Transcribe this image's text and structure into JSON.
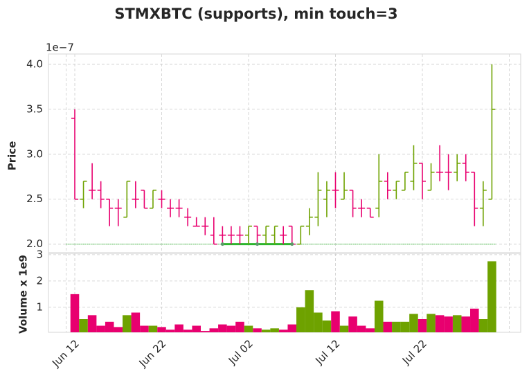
{
  "chart_data": {
    "type": "ohlc",
    "title": "STMXBTC (supports), min touch=3",
    "ylabel": "Price",
    "y_offset_label": "1e−7",
    "volume_label": "Volume x 1e9",
    "categories": [
      "Jun 12",
      null,
      null,
      null,
      null,
      null,
      null,
      null,
      null,
      null,
      "Jun 22",
      null,
      null,
      null,
      null,
      null,
      null,
      null,
      null,
      null,
      "Jul 02",
      null,
      null,
      null,
      null,
      null,
      null,
      null,
      null,
      null,
      "Jul 12",
      null,
      null,
      null,
      null,
      null,
      null,
      null,
      null,
      null,
      "Jul 22",
      null,
      null,
      null,
      null,
      null,
      null,
      null,
      null
    ],
    "open": [
      3.4,
      2.5,
      2.6,
      2.6,
      2.5,
      2.4,
      2.3,
      2.5,
      2.6,
      2.4,
      2.5,
      2.4,
      2.4,
      2.3,
      2.2,
      2.2,
      2.1,
      2.1,
      2.1,
      2.1,
      2.1,
      2.2,
      2.1,
      2.1,
      2.1,
      2.2,
      2.0,
      2.2,
      2.3,
      2.5,
      2.6,
      2.5,
      2.6,
      2.4,
      2.4,
      2.4,
      2.7,
      2.6,
      2.6,
      2.7,
      2.9,
      2.6,
      2.8,
      2.8,
      2.8,
      2.9,
      2.8,
      2.4,
      2.5
    ],
    "high": [
      3.5,
      2.7,
      2.9,
      2.7,
      2.5,
      2.5,
      2.7,
      2.7,
      2.6,
      2.6,
      2.6,
      2.5,
      2.5,
      2.4,
      2.3,
      2.3,
      2.3,
      2.2,
      2.2,
      2.2,
      2.2,
      2.2,
      2.2,
      2.2,
      2.2,
      2.2,
      2.2,
      2.4,
      2.8,
      2.7,
      2.8,
      2.8,
      2.6,
      2.5,
      2.4,
      3.0,
      2.8,
      2.7,
      2.8,
      3.1,
      2.9,
      2.9,
      3.1,
      3.0,
      3.0,
      3.0,
      2.8,
      2.7,
      4.0
    ],
    "low": [
      2.5,
      2.4,
      2.5,
      2.4,
      2.2,
      2.2,
      2.3,
      2.4,
      2.4,
      2.4,
      2.4,
      2.3,
      2.3,
      2.2,
      2.2,
      2.1,
      2.0,
      2.0,
      2.0,
      2.0,
      2.0,
      2.0,
      2.0,
      2.0,
      2.0,
      2.0,
      2.0,
      2.1,
      2.2,
      2.3,
      2.4,
      2.5,
      2.3,
      2.3,
      2.3,
      2.3,
      2.5,
      2.5,
      2.6,
      2.6,
      2.5,
      2.6,
      2.7,
      2.6,
      2.7,
      2.7,
      2.2,
      2.2,
      2.5
    ],
    "close": [
      2.5,
      2.7,
      2.6,
      2.5,
      2.4,
      2.4,
      2.7,
      2.5,
      2.4,
      2.6,
      2.5,
      2.4,
      2.4,
      2.3,
      2.2,
      2.2,
      2.0,
      2.1,
      2.1,
      2.1,
      2.2,
      2.1,
      2.2,
      2.2,
      2.1,
      2.0,
      2.2,
      2.3,
      2.6,
      2.6,
      2.6,
      2.6,
      2.4,
      2.4,
      2.3,
      2.7,
      2.6,
      2.7,
      2.8,
      2.9,
      2.7,
      2.8,
      2.8,
      2.8,
      2.9,
      2.8,
      2.4,
      2.6,
      3.5
    ],
    "volume": [
      1.5,
      0.55,
      0.7,
      0.3,
      0.45,
      0.25,
      0.7,
      0.8,
      0.3,
      0.3,
      0.25,
      0.15,
      0.35,
      0.15,
      0.3,
      0.1,
      0.2,
      0.35,
      0.3,
      0.45,
      0.3,
      0.2,
      0.15,
      0.2,
      0.15,
      0.35,
      1.0,
      1.65,
      0.8,
      0.5,
      0.85,
      0.3,
      0.65,
      0.3,
      0.2,
      1.25,
      0.45,
      0.45,
      0.45,
      0.75,
      0.55,
      0.75,
      0.7,
      0.65,
      0.7,
      0.65,
      0.95,
      0.55,
      2.75
    ],
    "up_color": "#6ea200",
    "down_color": "#e8006f",
    "support_color": "#2db52d",
    "support": {
      "value": 2.0,
      "touches": [
        17,
        21,
        25
      ]
    },
    "ylim": [
      1.905,
      4.115
    ],
    "yticks": [
      {
        "value": 2.0,
        "label": "2.0"
      },
      {
        "value": 2.5,
        "label": "2.5"
      },
      {
        "value": 3.0,
        "label": "3.0"
      },
      {
        "value": 3.5,
        "label": "3.5"
      },
      {
        "value": 4.0,
        "label": "4.0"
      }
    ],
    "vol_ylim": [
      0.05,
      3.05
    ],
    "vol_yticks": [
      1,
      2,
      3
    ],
    "grid": true
  }
}
